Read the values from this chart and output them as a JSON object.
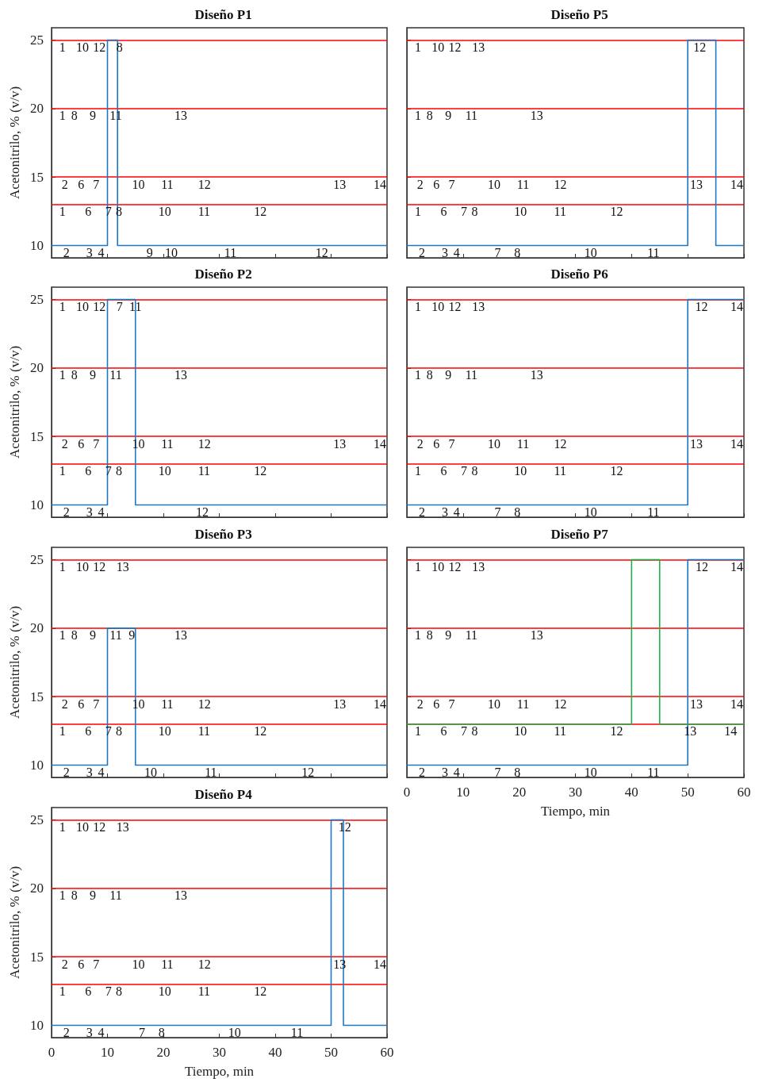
{
  "chart_data": [
    {
      "type": "step",
      "title": "Diseño P1",
      "ylabel": "Acetonitrilo, % (v/v)",
      "xlim": [
        0,
        60
      ],
      "xticks": [
        0,
        10,
        20,
        30,
        40,
        50,
        60
      ],
      "ylim": [
        9.1,
        25.9
      ],
      "yticks": [
        10,
        15,
        20,
        25
      ],
      "tick_labels": "y",
      "marker": "none",
      "ref_lines": [
        {
          "axis": "y",
          "value": 25,
          "color": "#ff0000"
        },
        {
          "axis": "y",
          "value": 20,
          "color": "#ff0000"
        },
        {
          "axis": "y",
          "value": 15,
          "color": "#ff0000"
        },
        {
          "axis": "y",
          "value": 13,
          "color": "#ff0000"
        }
      ],
      "series": [
        {
          "color": "#1f77c4",
          "x": [
            0,
            10,
            11.8,
            60
          ],
          "values": [
            10,
            25,
            10,
            10
          ]
        }
      ],
      "annotations": [
        {
          "text": "1",
          "x": 1.4,
          "y": 25
        },
        {
          "text": "10",
          "x": 4.4,
          "y": 25
        },
        {
          "text": "12",
          "x": 7.4,
          "y": 25
        },
        {
          "text": "8",
          "x": 11.6,
          "y": 25
        },
        {
          "text": "1",
          "x": 1.4,
          "y": 20
        },
        {
          "text": "8",
          "x": 3.5,
          "y": 20
        },
        {
          "text": "9",
          "x": 6.8,
          "y": 20
        },
        {
          "text": "11",
          "x": 10.4,
          "y": 20
        },
        {
          "text": "13",
          "x": 22.0,
          "y": 20
        },
        {
          "text": "2",
          "x": 1.8,
          "y": 15
        },
        {
          "text": "6",
          "x": 4.7,
          "y": 15
        },
        {
          "text": "7",
          "x": 7.4,
          "y": 15
        },
        {
          "text": "10",
          "x": 14.4,
          "y": 15
        },
        {
          "text": "11",
          "x": 19.6,
          "y": 15
        },
        {
          "text": "12",
          "x": 26.2,
          "y": 15
        },
        {
          "text": "13",
          "x": 50.4,
          "y": 15
        },
        {
          "text": "14",
          "x": 57.6,
          "y": 15
        },
        {
          "text": "1",
          "x": 1.4,
          "y": 13
        },
        {
          "text": "6",
          "x": 6.0,
          "y": 13
        },
        {
          "text": "7",
          "x": 9.6,
          "y": 13
        },
        {
          "text": "8",
          "x": 11.5,
          "y": 13
        },
        {
          "text": "10",
          "x": 19.1,
          "y": 13
        },
        {
          "text": "11",
          "x": 26.2,
          "y": 13
        },
        {
          "text": "12",
          "x": 36.2,
          "y": 13
        },
        {
          "text": "2",
          "x": 2.1,
          "y": 10
        },
        {
          "text": "3",
          "x": 6.2,
          "y": 10
        },
        {
          "text": "4",
          "x": 8.3,
          "y": 10
        },
        {
          "text": "9",
          "x": 17.0,
          "y": 10
        },
        {
          "text": "10",
          "x": 20.3,
          "y": 10
        },
        {
          "text": "11",
          "x": 30.9,
          "y": 10
        },
        {
          "text": "12",
          "x": 47.2,
          "y": 10
        }
      ]
    },
    {
      "type": "step",
      "title": "Diseño P5",
      "xlim": [
        0,
        60
      ],
      "xticks": [
        0,
        10,
        20,
        30,
        40,
        50,
        60
      ],
      "ylim": [
        9.1,
        25.9
      ],
      "yticks": [
        10,
        15,
        20,
        25
      ],
      "tick_labels": false,
      "marker": "none",
      "ref_lines": [
        {
          "axis": "y",
          "value": 25,
          "color": "#ff0000"
        },
        {
          "axis": "y",
          "value": 20,
          "color": "#ff0000"
        },
        {
          "axis": "y",
          "value": 15,
          "color": "#ff0000"
        },
        {
          "axis": "y",
          "value": 13,
          "color": "#ff0000"
        }
      ],
      "series": [
        {
          "color": "#1f77c4",
          "x": [
            0,
            50,
            55,
            60
          ],
          "values": [
            10,
            25,
            10,
            10
          ]
        }
      ],
      "annotations": [
        {
          "text": "1",
          "x": 1.4,
          "y": 25
        },
        {
          "text": "10",
          "x": 4.4,
          "y": 25
        },
        {
          "text": "12",
          "x": 7.4,
          "y": 25
        },
        {
          "text": "13",
          "x": 11.6,
          "y": 25
        },
        {
          "text": "1",
          "x": 1.4,
          "y": 20
        },
        {
          "text": "8",
          "x": 3.5,
          "y": 20
        },
        {
          "text": "9",
          "x": 6.8,
          "y": 20
        },
        {
          "text": "11",
          "x": 10.4,
          "y": 20
        },
        {
          "text": "13",
          "x": 22.0,
          "y": 20
        },
        {
          "text": "2",
          "x": 1.8,
          "y": 15
        },
        {
          "text": "6",
          "x": 4.7,
          "y": 15
        },
        {
          "text": "7",
          "x": 7.4,
          "y": 15
        },
        {
          "text": "10",
          "x": 14.4,
          "y": 15
        },
        {
          "text": "11",
          "x": 19.6,
          "y": 15
        },
        {
          "text": "12",
          "x": 26.2,
          "y": 15
        },
        {
          "text": "13",
          "x": 50.4,
          "y": 15
        },
        {
          "text": "14",
          "x": 57.6,
          "y": 15
        },
        {
          "text": "1",
          "x": 1.4,
          "y": 13
        },
        {
          "text": "6",
          "x": 6.0,
          "y": 13
        },
        {
          "text": "7",
          "x": 9.6,
          "y": 13
        },
        {
          "text": "8",
          "x": 11.5,
          "y": 13
        },
        {
          "text": "10",
          "x": 19.1,
          "y": 13
        },
        {
          "text": "11",
          "x": 26.2,
          "y": 13
        },
        {
          "text": "12",
          "x": 36.2,
          "y": 13
        },
        {
          "text": "2",
          "x": 2.1,
          "y": 10
        },
        {
          "text": "3",
          "x": 6.2,
          "y": 10
        },
        {
          "text": "4",
          "x": 8.3,
          "y": 10
        },
        {
          "text": "7",
          "x": 15.6,
          "y": 10
        },
        {
          "text": "8",
          "x": 19.1,
          "y": 10
        },
        {
          "text": "10",
          "x": 31.6,
          "y": 10
        },
        {
          "text": "11",
          "x": 42.8,
          "y": 10
        },
        {
          "text": "12",
          "x": 51.0,
          "y": 25
        }
      ]
    },
    {
      "type": "step",
      "title": "Diseño P2",
      "ylabel": "Acetonitrilo, % (v/v)",
      "xlim": [
        0,
        60
      ],
      "xticks": [
        0,
        10,
        20,
        30,
        40,
        50,
        60
      ],
      "ylim": [
        9.1,
        25.9
      ],
      "yticks": [
        10,
        15,
        20,
        25
      ],
      "tick_labels": "y",
      "marker": "none",
      "ref_lines": [
        {
          "axis": "y",
          "value": 25,
          "color": "#ff0000"
        },
        {
          "axis": "y",
          "value": 20,
          "color": "#ff0000"
        },
        {
          "axis": "y",
          "value": 15,
          "color": "#ff0000"
        },
        {
          "axis": "y",
          "value": 13,
          "color": "#ff0000"
        }
      ],
      "series": [
        {
          "color": "#1f77c4",
          "x": [
            0,
            10,
            15,
            60
          ],
          "values": [
            10,
            25,
            10,
            10
          ]
        }
      ],
      "annotations": [
        {
          "text": "1",
          "x": 1.4,
          "y": 25
        },
        {
          "text": "10",
          "x": 4.4,
          "y": 25
        },
        {
          "text": "12",
          "x": 7.4,
          "y": 25
        },
        {
          "text": "7",
          "x": 11.6,
          "y": 25
        },
        {
          "text": "11",
          "x": 13.9,
          "y": 25
        },
        {
          "text": "1",
          "x": 1.4,
          "y": 20
        },
        {
          "text": "8",
          "x": 3.5,
          "y": 20
        },
        {
          "text": "9",
          "x": 6.8,
          "y": 20
        },
        {
          "text": "11",
          "x": 10.4,
          "y": 20
        },
        {
          "text": "13",
          "x": 22.0,
          "y": 20
        },
        {
          "text": "2",
          "x": 1.8,
          "y": 15
        },
        {
          "text": "6",
          "x": 4.7,
          "y": 15
        },
        {
          "text": "7",
          "x": 7.4,
          "y": 15
        },
        {
          "text": "10",
          "x": 14.4,
          "y": 15
        },
        {
          "text": "11",
          "x": 19.6,
          "y": 15
        },
        {
          "text": "12",
          "x": 26.2,
          "y": 15
        },
        {
          "text": "13",
          "x": 50.4,
          "y": 15
        },
        {
          "text": "14",
          "x": 57.6,
          "y": 15
        },
        {
          "text": "1",
          "x": 1.4,
          "y": 13
        },
        {
          "text": "6",
          "x": 6.0,
          "y": 13
        },
        {
          "text": "7",
          "x": 9.6,
          "y": 13
        },
        {
          "text": "8",
          "x": 11.5,
          "y": 13
        },
        {
          "text": "10",
          "x": 19.1,
          "y": 13
        },
        {
          "text": "11",
          "x": 26.2,
          "y": 13
        },
        {
          "text": "12",
          "x": 36.2,
          "y": 13
        },
        {
          "text": "2",
          "x": 2.1,
          "y": 10
        },
        {
          "text": "3",
          "x": 6.2,
          "y": 10
        },
        {
          "text": "4",
          "x": 8.3,
          "y": 10
        },
        {
          "text": "12",
          "x": 25.8,
          "y": 10
        }
      ]
    },
    {
      "type": "step",
      "title": "Diseño P6",
      "xlim": [
        0,
        60
      ],
      "xticks": [
        0,
        10,
        20,
        30,
        40,
        50,
        60
      ],
      "ylim": [
        9.1,
        25.9
      ],
      "yticks": [
        10,
        15,
        20,
        25
      ],
      "tick_labels": false,
      "marker": "none",
      "ref_lines": [
        {
          "axis": "y",
          "value": 25,
          "color": "#ff0000"
        },
        {
          "axis": "y",
          "value": 20,
          "color": "#ff0000"
        },
        {
          "axis": "y",
          "value": 15,
          "color": "#ff0000"
        },
        {
          "axis": "y",
          "value": 13,
          "color": "#ff0000"
        }
      ],
      "series": [
        {
          "color": "#1f77c4",
          "x": [
            0,
            50,
            60
          ],
          "values": [
            10,
            25,
            25
          ]
        }
      ],
      "annotations": [
        {
          "text": "1",
          "x": 1.4,
          "y": 25
        },
        {
          "text": "10",
          "x": 4.4,
          "y": 25
        },
        {
          "text": "12",
          "x": 7.4,
          "y": 25
        },
        {
          "text": "13",
          "x": 11.6,
          "y": 25
        },
        {
          "text": "1",
          "x": 1.4,
          "y": 20
        },
        {
          "text": "8",
          "x": 3.5,
          "y": 20
        },
        {
          "text": "9",
          "x": 6.8,
          "y": 20
        },
        {
          "text": "11",
          "x": 10.4,
          "y": 20
        },
        {
          "text": "13",
          "x": 22.0,
          "y": 20
        },
        {
          "text": "2",
          "x": 1.8,
          "y": 15
        },
        {
          "text": "6",
          "x": 4.7,
          "y": 15
        },
        {
          "text": "7",
          "x": 7.4,
          "y": 15
        },
        {
          "text": "10",
          "x": 14.4,
          "y": 15
        },
        {
          "text": "11",
          "x": 19.6,
          "y": 15
        },
        {
          "text": "12",
          "x": 26.2,
          "y": 15
        },
        {
          "text": "13",
          "x": 50.4,
          "y": 15
        },
        {
          "text": "14",
          "x": 57.6,
          "y": 15
        },
        {
          "text": "1",
          "x": 1.4,
          "y": 13
        },
        {
          "text": "6",
          "x": 6.0,
          "y": 13
        },
        {
          "text": "7",
          "x": 9.6,
          "y": 13
        },
        {
          "text": "8",
          "x": 11.5,
          "y": 13
        },
        {
          "text": "10",
          "x": 19.1,
          "y": 13
        },
        {
          "text": "11",
          "x": 26.2,
          "y": 13
        },
        {
          "text": "12",
          "x": 36.2,
          "y": 13
        },
        {
          "text": "2",
          "x": 2.1,
          "y": 10
        },
        {
          "text": "3",
          "x": 6.2,
          "y": 10
        },
        {
          "text": "4",
          "x": 8.3,
          "y": 10
        },
        {
          "text": "7",
          "x": 15.6,
          "y": 10
        },
        {
          "text": "8",
          "x": 19.1,
          "y": 10
        },
        {
          "text": "10",
          "x": 31.6,
          "y": 10
        },
        {
          "text": "11",
          "x": 42.8,
          "y": 10
        },
        {
          "text": "12",
          "x": 51.3,
          "y": 25
        },
        {
          "text": "14",
          "x": 57.6,
          "y": 25
        }
      ]
    },
    {
      "type": "step",
      "title": "Diseño P3",
      "ylabel": "Acetonitrilo, % (v/v)",
      "xlim": [
        0,
        60
      ],
      "xticks": [
        0,
        10,
        20,
        30,
        40,
        50,
        60
      ],
      "ylim": [
        9.1,
        25.9
      ],
      "yticks": [
        10,
        15,
        20,
        25
      ],
      "tick_labels": "y",
      "marker": "none",
      "ref_lines": [
        {
          "axis": "y",
          "value": 25,
          "color": "#ff0000"
        },
        {
          "axis": "y",
          "value": 20,
          "color": "#ff0000"
        },
        {
          "axis": "y",
          "value": 15,
          "color": "#ff0000"
        },
        {
          "axis": "y",
          "value": 13,
          "color": "#ff0000"
        }
      ],
      "series": [
        {
          "color": "#1f77c4",
          "x": [
            0,
            10,
            15,
            60
          ],
          "values": [
            10,
            20,
            10,
            10
          ]
        }
      ],
      "annotations": [
        {
          "text": "1",
          "x": 1.4,
          "y": 25
        },
        {
          "text": "10",
          "x": 4.4,
          "y": 25
        },
        {
          "text": "12",
          "x": 7.4,
          "y": 25
        },
        {
          "text": "13",
          "x": 11.6,
          "y": 25
        },
        {
          "text": "1",
          "x": 1.4,
          "y": 20
        },
        {
          "text": "8",
          "x": 3.5,
          "y": 20
        },
        {
          "text": "9",
          "x": 6.8,
          "y": 20
        },
        {
          "text": "11",
          "x": 10.4,
          "y": 20
        },
        {
          "text": "9",
          "x": 13.8,
          "y": 20
        },
        {
          "text": "13",
          "x": 22.0,
          "y": 20
        },
        {
          "text": "2",
          "x": 1.8,
          "y": 15
        },
        {
          "text": "6",
          "x": 4.7,
          "y": 15
        },
        {
          "text": "7",
          "x": 7.4,
          "y": 15
        },
        {
          "text": "10",
          "x": 14.4,
          "y": 15
        },
        {
          "text": "11",
          "x": 19.6,
          "y": 15
        },
        {
          "text": "12",
          "x": 26.2,
          "y": 15
        },
        {
          "text": "13",
          "x": 50.4,
          "y": 15
        },
        {
          "text": "14",
          "x": 57.6,
          "y": 15
        },
        {
          "text": "1",
          "x": 1.4,
          "y": 13
        },
        {
          "text": "6",
          "x": 6.0,
          "y": 13
        },
        {
          "text": "7",
          "x": 9.6,
          "y": 13
        },
        {
          "text": "8",
          "x": 11.5,
          "y": 13
        },
        {
          "text": "10",
          "x": 19.1,
          "y": 13
        },
        {
          "text": "11",
          "x": 26.2,
          "y": 13
        },
        {
          "text": "12",
          "x": 36.2,
          "y": 13
        },
        {
          "text": "2",
          "x": 2.1,
          "y": 10
        },
        {
          "text": "3",
          "x": 6.2,
          "y": 10
        },
        {
          "text": "4",
          "x": 8.3,
          "y": 10
        },
        {
          "text": "10",
          "x": 16.6,
          "y": 10
        },
        {
          "text": "11",
          "x": 27.4,
          "y": 10
        },
        {
          "text": "12",
          "x": 44.7,
          "y": 10
        }
      ]
    },
    {
      "type": "step",
      "title": "Diseño P7",
      "xlabel": "Tiempo, min",
      "xlim": [
        0,
        60
      ],
      "xticks": [
        0,
        10,
        20,
        30,
        40,
        50,
        60
      ],
      "ylim": [
        9.1,
        25.9
      ],
      "yticks": [
        10,
        15,
        20,
        25
      ],
      "tick_labels": "x",
      "marker": "none",
      "ref_lines": [
        {
          "axis": "y",
          "value": 25,
          "color": "#ff0000"
        },
        {
          "axis": "y",
          "value": 20,
          "color": "#ff0000"
        },
        {
          "axis": "y",
          "value": 15,
          "color": "#ff0000"
        },
        {
          "axis": "y",
          "value": 13,
          "color": "#ff0000"
        }
      ],
      "series": [
        {
          "color": "#1f77c4",
          "x": [
            0,
            50,
            60
          ],
          "values": [
            10,
            25,
            25
          ]
        },
        {
          "color": "#1fb04a",
          "x": [
            0,
            40,
            45,
            60
          ],
          "values": [
            13,
            25,
            13,
            13
          ]
        }
      ],
      "annotations": [
        {
          "text": "1",
          "x": 1.4,
          "y": 25
        },
        {
          "text": "10",
          "x": 4.4,
          "y": 25
        },
        {
          "text": "12",
          "x": 7.4,
          "y": 25
        },
        {
          "text": "13",
          "x": 11.6,
          "y": 25
        },
        {
          "text": "1",
          "x": 1.4,
          "y": 20
        },
        {
          "text": "8",
          "x": 3.5,
          "y": 20
        },
        {
          "text": "9",
          "x": 6.8,
          "y": 20
        },
        {
          "text": "11",
          "x": 10.4,
          "y": 20
        },
        {
          "text": "13",
          "x": 22.0,
          "y": 20
        },
        {
          "text": "2",
          "x": 1.8,
          "y": 15
        },
        {
          "text": "6",
          "x": 4.7,
          "y": 15
        },
        {
          "text": "7",
          "x": 7.4,
          "y": 15
        },
        {
          "text": "10",
          "x": 14.4,
          "y": 15
        },
        {
          "text": "11",
          "x": 19.6,
          "y": 15
        },
        {
          "text": "12",
          "x": 26.2,
          "y": 15
        },
        {
          "text": "13",
          "x": 50.4,
          "y": 15
        },
        {
          "text": "14",
          "x": 57.6,
          "y": 15
        },
        {
          "text": "1",
          "x": 1.4,
          "y": 13
        },
        {
          "text": "6",
          "x": 6.0,
          "y": 13
        },
        {
          "text": "7",
          "x": 9.6,
          "y": 13
        },
        {
          "text": "8",
          "x": 11.5,
          "y": 13
        },
        {
          "text": "10",
          "x": 19.1,
          "y": 13
        },
        {
          "text": "11",
          "x": 26.2,
          "y": 13
        },
        {
          "text": "12",
          "x": 36.2,
          "y": 13
        },
        {
          "text": "13",
          "x": 49.3,
          "y": 13
        },
        {
          "text": "14",
          "x": 56.5,
          "y": 13
        },
        {
          "text": "2",
          "x": 2.1,
          "y": 10
        },
        {
          "text": "3",
          "x": 6.2,
          "y": 10
        },
        {
          "text": "4",
          "x": 8.3,
          "y": 10
        },
        {
          "text": "7",
          "x": 15.6,
          "y": 10
        },
        {
          "text": "8",
          "x": 19.1,
          "y": 10
        },
        {
          "text": "10",
          "x": 31.6,
          "y": 10
        },
        {
          "text": "11",
          "x": 42.8,
          "y": 10
        },
        {
          "text": "12",
          "x": 51.4,
          "y": 25
        },
        {
          "text": "14",
          "x": 57.6,
          "y": 25
        }
      ]
    },
    {
      "type": "step",
      "title": "Diseño P4",
      "ylabel": "Acetonitrilo, % (v/v)",
      "xlabel": "Tiempo, min",
      "xlim": [
        0,
        60
      ],
      "xticks": [
        0,
        10,
        20,
        30,
        40,
        50,
        60
      ],
      "ylim": [
        9.1,
        25.9
      ],
      "yticks": [
        10,
        15,
        20,
        25
      ],
      "marker": "none",
      "ref_lines": [
        {
          "axis": "y",
          "value": 25,
          "color": "#ff0000"
        },
        {
          "axis": "y",
          "value": 20,
          "color": "#ff0000"
        },
        {
          "axis": "y",
          "value": 15,
          "color": "#ff0000"
        },
        {
          "axis": "y",
          "value": 13,
          "color": "#ff0000"
        }
      ],
      "series": [
        {
          "color": "#1f77c4",
          "x": [
            0,
            50,
            52.2,
            60
          ],
          "values": [
            10,
            25,
            10,
            10
          ]
        }
      ],
      "annotations": [
        {
          "text": "1",
          "x": 1.4,
          "y": 25
        },
        {
          "text": "10",
          "x": 4.4,
          "y": 25
        },
        {
          "text": "12",
          "x": 7.4,
          "y": 25
        },
        {
          "text": "13",
          "x": 11.6,
          "y": 25
        },
        {
          "text": "1",
          "x": 1.4,
          "y": 20
        },
        {
          "text": "8",
          "x": 3.5,
          "y": 20
        },
        {
          "text": "9",
          "x": 6.8,
          "y": 20
        },
        {
          "text": "11",
          "x": 10.4,
          "y": 20
        },
        {
          "text": "13",
          "x": 22.0,
          "y": 20
        },
        {
          "text": "2",
          "x": 1.8,
          "y": 15
        },
        {
          "text": "6",
          "x": 4.7,
          "y": 15
        },
        {
          "text": "7",
          "x": 7.4,
          "y": 15
        },
        {
          "text": "10",
          "x": 14.4,
          "y": 15
        },
        {
          "text": "11",
          "x": 19.6,
          "y": 15
        },
        {
          "text": "12",
          "x": 26.2,
          "y": 15
        },
        {
          "text": "13",
          "x": 50.4,
          "y": 15
        },
        {
          "text": "14",
          "x": 57.6,
          "y": 15
        },
        {
          "text": "1",
          "x": 1.4,
          "y": 13
        },
        {
          "text": "6",
          "x": 6.0,
          "y": 13
        },
        {
          "text": "7",
          "x": 9.6,
          "y": 13
        },
        {
          "text": "8",
          "x": 11.5,
          "y": 13
        },
        {
          "text": "10",
          "x": 19.1,
          "y": 13
        },
        {
          "text": "11",
          "x": 26.2,
          "y": 13
        },
        {
          "text": "12",
          "x": 36.2,
          "y": 13
        },
        {
          "text": "2",
          "x": 2.1,
          "y": 10
        },
        {
          "text": "3",
          "x": 6.2,
          "y": 10
        },
        {
          "text": "4",
          "x": 8.3,
          "y": 10
        },
        {
          "text": "7",
          "x": 15.6,
          "y": 10
        },
        {
          "text": "8",
          "x": 19.1,
          "y": 10
        },
        {
          "text": "10",
          "x": 31.6,
          "y": 10
        },
        {
          "text": "11",
          "x": 42.8,
          "y": 10
        },
        {
          "text": "12",
          "x": 51.3,
          "y": 25
        }
      ]
    }
  ]
}
